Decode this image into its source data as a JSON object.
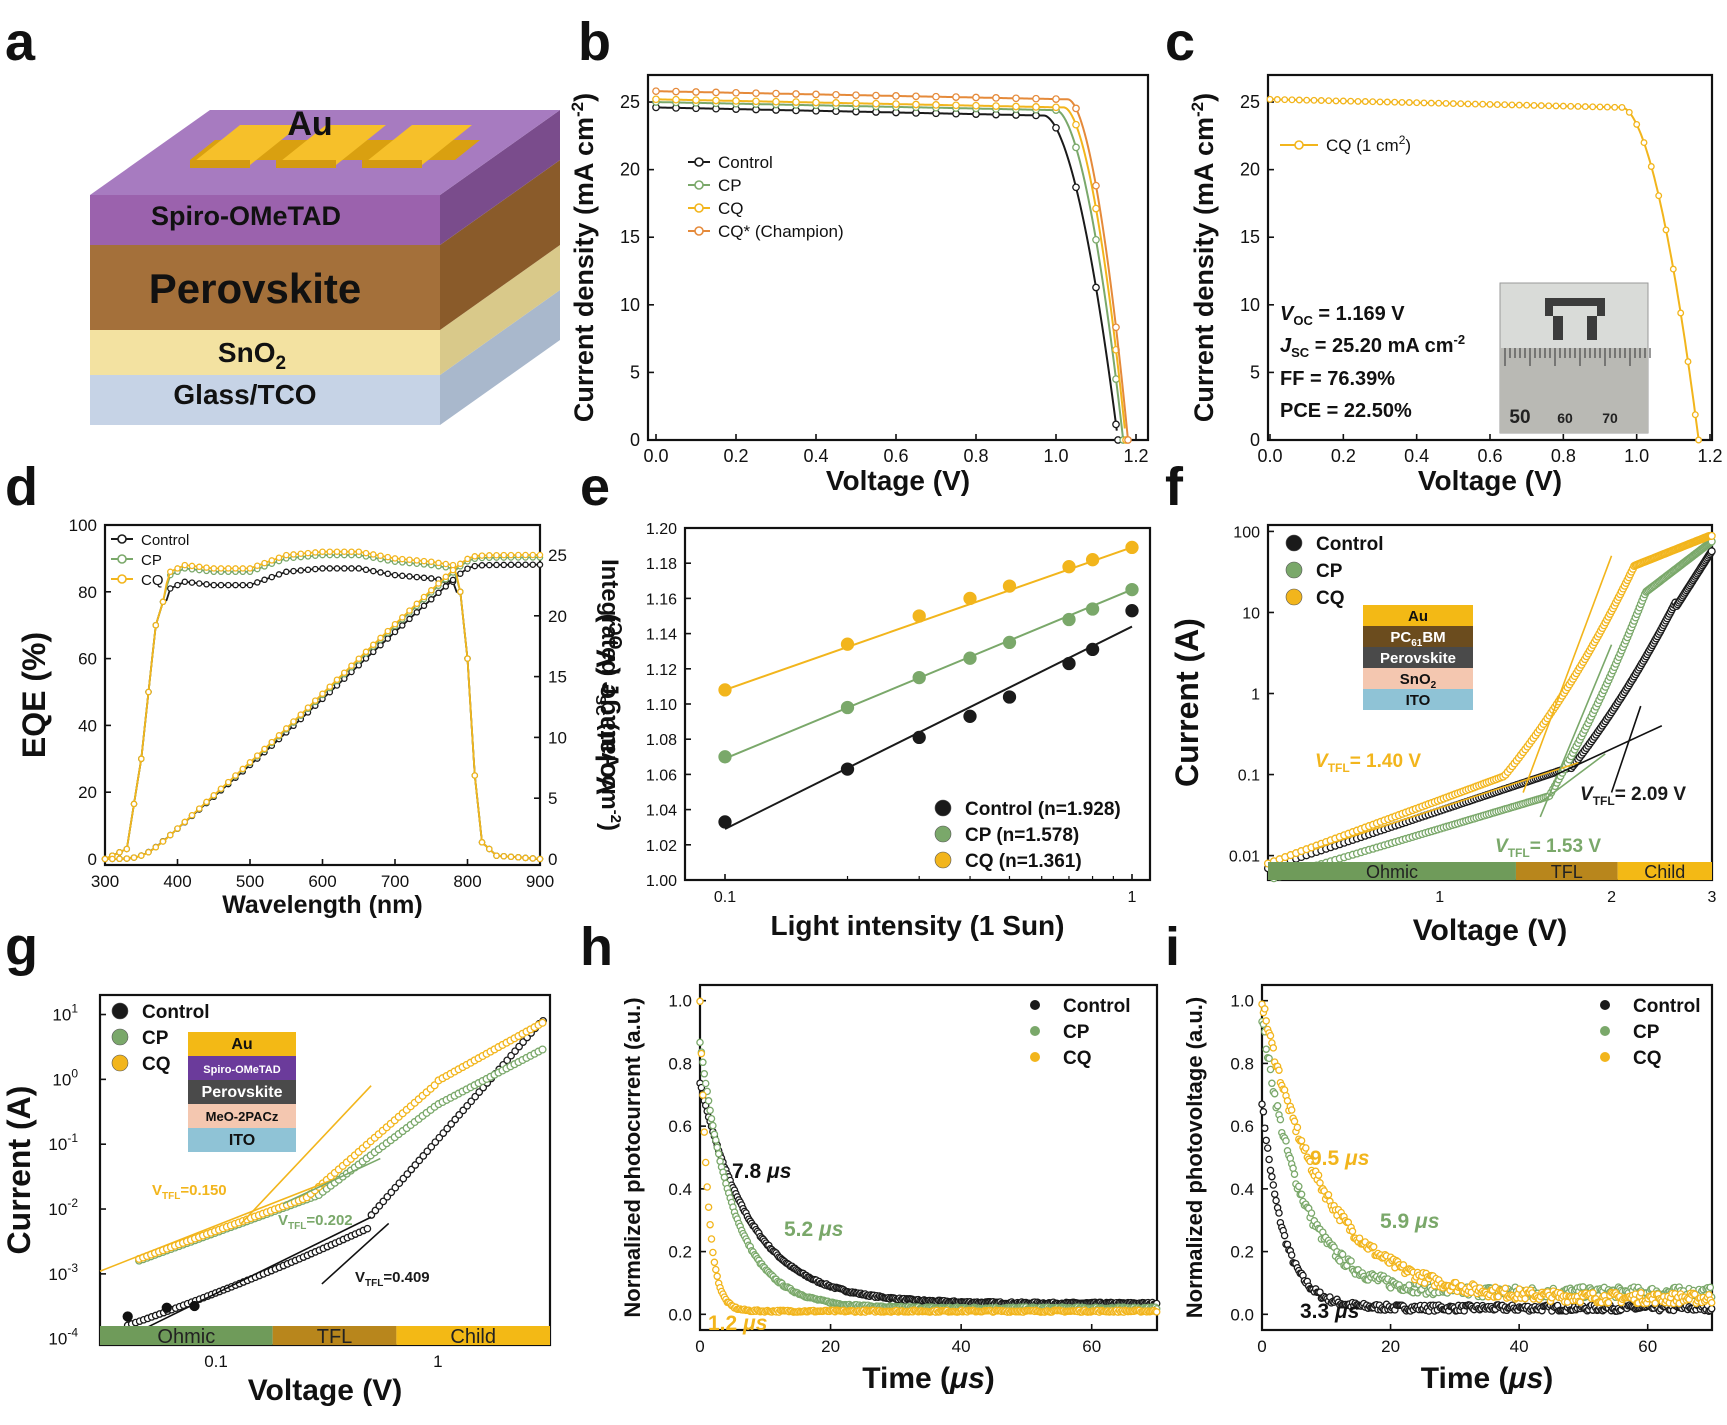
{
  "colors": {
    "control": "#1a1a1a",
    "cp": "#7aa86a",
    "cq": "#f2b51c",
    "champion": "#e58a3a",
    "ohmic": "#6f9b5a",
    "tfl": "#b8861c",
    "child": "#f3b915"
  },
  "panel_letters": [
    "a",
    "b",
    "c",
    "d",
    "e",
    "f",
    "g",
    "h",
    "i"
  ],
  "device_a": {
    "layers": [
      "Au",
      "Spiro-OMeTAD",
      "Perovskite",
      "SnO",
      "Glass/TCO"
    ],
    "sno2_subscript": "2"
  },
  "chart_data": [
    {
      "id": "b",
      "type": "line",
      "xlabel": "Voltage (V)",
      "ylabel": "Current density (mA cm",
      "ylabel_sup": "-2",
      "ylabel_close": ")",
      "xlim": [
        0,
        1.2
      ],
      "ylim": [
        0,
        27
      ],
      "xticks": [
        "0.0",
        "0.2",
        "0.4",
        "0.6",
        "0.8",
        "1.0",
        "1.2"
      ],
      "yticks": [
        "0",
        "5",
        "10",
        "15",
        "20",
        "25"
      ],
      "series": [
        {
          "name": "Control",
          "color": "#1a1a1a",
          "jsc": 24.6,
          "voc": 1.155,
          "knee": 0.97
        },
        {
          "name": "CP",
          "color": "#7aa86a",
          "jsc": 25.0,
          "voc": 1.168,
          "knee": 1.0
        },
        {
          "name": "CQ",
          "color": "#f2b51c",
          "jsc": 25.2,
          "voc": 1.175,
          "knee": 1.02
        },
        {
          "name": "CQ* (Champion)",
          "color": "#e58a3a",
          "jsc": 25.8,
          "voc": 1.18,
          "knee": 1.03
        }
      ]
    },
    {
      "id": "c",
      "type": "line",
      "xlabel": "Voltage (V)",
      "ylabel": "Current density (mA cm",
      "ylabel_sup": "-2",
      "ylabel_close": ")",
      "xlim": [
        0,
        1.2
      ],
      "ylim": [
        0,
        27
      ],
      "xticks": [
        "0.0",
        "0.2",
        "0.4",
        "0.6",
        "0.8",
        "1.0",
        "1.2"
      ],
      "yticks": [
        "0",
        "5",
        "10",
        "15",
        "20",
        "25"
      ],
      "series": [
        {
          "name": "CQ (1 cm",
          "name_sup": "2",
          "name_close": ")",
          "color": "#f2b51c",
          "jsc": 25.2,
          "voc": 1.169,
          "knee": 0.96
        }
      ],
      "annotations": {
        "voc": "= 1.169 V",
        "jsc": "= 25.20 mA cm",
        "jsc_sup": "-2",
        "ff": "FF = 76.39%",
        "pce": "PCE = 22.50%"
      },
      "inset_ruler": [
        "50",
        "60",
        "70"
      ]
    },
    {
      "id": "d",
      "type": "line",
      "xlabel": "Wavelength (nm)",
      "ylabel": "EQE (%)",
      "y2label": "Integrated J",
      "y2label_sub": "SC",
      "y2label_tail": " (mA cm",
      "y2label_sup": "-2",
      "y2label_close": ")",
      "xlim": [
        300,
        900
      ],
      "ylim": [
        0,
        100
      ],
      "y2lim": [
        0,
        25
      ],
      "xticks": [
        "300",
        "400",
        "500",
        "600",
        "700",
        "800",
        "900"
      ],
      "yticks": [
        "0",
        "20",
        "40",
        "60",
        "80",
        "100"
      ],
      "y2ticks": [
        "0",
        "5",
        "10",
        "15",
        "20",
        "25"
      ],
      "series": [
        {
          "name": "Control",
          "color": "#1a1a1a"
        },
        {
          "name": "CP",
          "color": "#7aa86a"
        },
        {
          "name": "CQ",
          "color": "#f2b51c"
        }
      ],
      "eqe_points": [
        [
          300,
          0
        ],
        [
          330,
          3
        ],
        [
          350,
          30
        ],
        [
          370,
          70
        ],
        [
          390,
          84
        ],
        [
          410,
          86
        ],
        [
          450,
          85
        ],
        [
          500,
          85
        ],
        [
          550,
          89
        ],
        [
          600,
          90
        ],
        [
          650,
          90
        ],
        [
          700,
          88
        ],
        [
          750,
          87
        ],
        [
          780,
          86
        ],
        [
          790,
          80
        ],
        [
          800,
          60
        ],
        [
          810,
          25
        ],
        [
          820,
          5
        ],
        [
          840,
          1
        ],
        [
          900,
          0
        ]
      ],
      "jsc_final": [
        24.2,
        24.8,
        25.0
      ]
    },
    {
      "id": "e",
      "type": "scatter",
      "xlabel": "Light intensity (1 Sun)",
      "ylabel": "Volatage (V",
      "ylabel_sub": "OC",
      "ylabel_close": ")",
      "xscale": "log",
      "xlim": [
        0.1,
        1
      ],
      "ylim": [
        1.0,
        1.2
      ],
      "xticks": [
        "0.1",
        "1"
      ],
      "yticks": [
        "1.00",
        "1.02",
        "1.04",
        "1.06",
        "1.08",
        "1.10",
        "1.12",
        "1.14",
        "1.16",
        "1.18",
        "1.20"
      ],
      "x": [
        0.1,
        0.2,
        0.3,
        0.4,
        0.5,
        0.7,
        0.8,
        1.0
      ],
      "series": [
        {
          "name": "Control (n=1.928)",
          "color": "#1a1a1a",
          "values": [
            1.033,
            1.063,
            1.081,
            1.093,
            1.104,
            1.123,
            1.131,
            1.153
          ],
          "fit": [
            1.029,
            1.144
          ]
        },
        {
          "name": "CP (n=1.578)",
          "color": "#7aa86a",
          "values": [
            1.07,
            1.098,
            1.115,
            1.126,
            1.135,
            1.148,
            1.154,
            1.165
          ],
          "fit": [
            1.069,
            1.165
          ]
        },
        {
          "name": "CQ (n=1.361)",
          "color": "#f2b51c",
          "values": [
            1.108,
            1.134,
            1.15,
            1.16,
            1.167,
            1.178,
            1.182,
            1.189
          ],
          "fit": [
            1.108,
            1.189
          ]
        }
      ]
    },
    {
      "id": "f",
      "type": "scatter",
      "xlabel": "Voltage (V)",
      "ylabel": "Current (A)",
      "xscale": "log",
      "yscale": "log",
      "xlim": [
        0.5,
        3
      ],
      "ylim": [
        0.005,
        120
      ],
      "xticks": [
        "1",
        "2",
        "3"
      ],
      "yticks": [
        "0.01",
        "0.1",
        "1",
        "10",
        "100"
      ],
      "series": [
        {
          "name": "Control",
          "color": "#1a1a1a"
        },
        {
          "name": "CP",
          "color": "#7aa86a"
        },
        {
          "name": "CQ",
          "color": "#f2b51c"
        }
      ],
      "stack": [
        "Au",
        "PC",
        "Perovskite",
        "SnO",
        "ITO"
      ],
      "stack_pcbm_sub": "61",
      "stack_pcbm_tail": "BM",
      "stack_sno2_sub": "2",
      "vtfl": [
        {
          "label": "= 1.40 V",
          "color": "#f2b51c"
        },
        {
          "label": "= 1.53 V",
          "color": "#7aa86a"
        },
        {
          "label": "= 2.09 V",
          "color": "#1a1a1a"
        }
      ],
      "regions": [
        "Ohmic",
        "TFL",
        "Child"
      ]
    },
    {
      "id": "g",
      "type": "scatter",
      "xlabel": "Voltage (V)",
      "ylabel": "Current (A)",
      "xscale": "log",
      "yscale": "log",
      "xlim": [
        0.03,
        3.2
      ],
      "ylim": [
        8e-05,
        20
      ],
      "xticks": [
        "0.1",
        "1"
      ],
      "yticks": [
        "10",
        "10",
        "10",
        "10",
        "10",
        "10"
      ],
      "ytick_exp": [
        "-4",
        "-3",
        "-2",
        "-1",
        "0",
        "1"
      ],
      "series": [
        {
          "name": "Control",
          "color": "#1a1a1a"
        },
        {
          "name": "CP",
          "color": "#7aa86a"
        },
        {
          "name": "CQ",
          "color": "#f2b51c"
        }
      ],
      "stack": [
        "Au",
        "Spiro-OMeTAD",
        "Perovskite",
        "MeO-2PACz",
        "ITO"
      ],
      "vtfl": [
        {
          "label": "=0.150",
          "color": "#f2b51c"
        },
        {
          "label": "=0.202",
          "color": "#7aa86a"
        },
        {
          "label": "=0.409",
          "color": "#1a1a1a"
        }
      ],
      "regions": [
        "Ohmic",
        "TFL",
        "Child"
      ]
    },
    {
      "id": "h",
      "type": "scatter",
      "xlabel": "Time (",
      "xlabel_mu": "μs",
      "xlabel_close": ")",
      "ylabel": "Normalized photocurrent (a.u.)",
      "xlim": [
        0,
        70
      ],
      "ylim": [
        -0.05,
        1.05
      ],
      "xticks": [
        "0",
        "20",
        "40",
        "60"
      ],
      "yticks": [
        "0.0",
        "0.2",
        "0.4",
        "0.6",
        "0.8",
        "1.0"
      ],
      "series": [
        {
          "name": "Control",
          "color": "#1a1a1a",
          "tau": 7.8,
          "start": 0.74,
          "floor": 0.035,
          "label": "7.8 "
        },
        {
          "name": "CP",
          "color": "#7aa86a",
          "tau": 5.2,
          "start": 0.87,
          "floor": 0.02,
          "label": "5.2 "
        },
        {
          "name": "CQ",
          "color": "#f2b51c",
          "tau": 1.2,
          "start": 1.0,
          "floor": 0.01,
          "label": "1.2 "
        }
      ],
      "mu": "μs"
    },
    {
      "id": "i",
      "type": "scatter",
      "xlabel": "Time (",
      "xlabel_mu": "μs",
      "xlabel_close": ")",
      "ylabel": "Normalized photovoltage (a.u.)",
      "xlim": [
        0,
        70
      ],
      "ylim": [
        -0.05,
        1.05
      ],
      "xticks": [
        "0",
        "20",
        "40",
        "60"
      ],
      "yticks": [
        "0.0",
        "0.2",
        "0.4",
        "0.6",
        "0.8",
        "1.0"
      ],
      "series": [
        {
          "name": "Control",
          "color": "#1a1a1a",
          "tau": 3.3,
          "start": 0.68,
          "floor": 0.02,
          "label": "3.3 "
        },
        {
          "name": "CP",
          "color": "#7aa86a",
          "tau": 5.9,
          "start": 0.95,
          "floor": 0.07,
          "label": "5.9 "
        },
        {
          "name": "CQ",
          "color": "#f2b51c",
          "tau": 9.5,
          "start": 1.0,
          "floor": 0.05,
          "label": "9.5 "
        }
      ],
      "mu": "μs"
    }
  ]
}
